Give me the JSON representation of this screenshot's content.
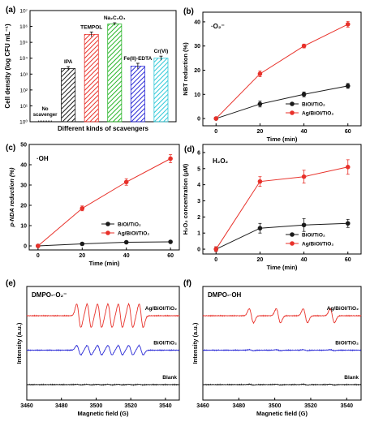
{
  "chart_data": [
    {
      "panel": "(a)",
      "type": "bar",
      "categories": [
        "No scavenger",
        "IPA",
        "TEMPOL",
        "Na2C2O4",
        "Fe(II)-EDTA",
        "Cr(VI)"
      ],
      "category_labels": [
        "No\nscavenger",
        "IPA",
        "TEMPOL",
        "Na₂C₂O₄",
        "Fe(II)-EDTA",
        "Cr(VI)"
      ],
      "values_log10": [
        0,
        3.35,
        5.5,
        6.15,
        3.5,
        4.0
      ],
      "errors_log10": [
        0,
        0.12,
        0.15,
        0.08,
        0.18,
        0.13
      ],
      "colors": [
        "#1a1a1a",
        "#1a1a1a",
        "#e8312a",
        "#27b427",
        "#2b2bd6",
        "#2ec8d8"
      ],
      "ylabel": "Cell density (log CFU mL⁻¹)",
      "xlabel": "Different kinds of scavengers",
      "yticks": [
        "10⁰",
        "10¹",
        "10²",
        "10³",
        "10⁴",
        "10⁵",
        "10⁶",
        "10⁷"
      ],
      "ylim": [
        0,
        7
      ]
    },
    {
      "panel": "(b)",
      "type": "line",
      "annotation": "·O₂⁻",
      "x": [
        0,
        20,
        40,
        60
      ],
      "series": [
        {
          "name": "BiOI/TiO₂",
          "values": [
            0,
            6,
            10,
            13.5
          ],
          "errors": [
            0.5,
            1.2,
            1.0,
            1.0
          ],
          "color": "#1a1a1a"
        },
        {
          "name": "Ag/BiOI/TiO₂",
          "values": [
            0,
            18.5,
            30,
            39
          ],
          "errors": [
            0.5,
            1.2,
            0.8,
            1.2
          ],
          "color": "#e8312a"
        }
      ],
      "xlabel": "Time (min)",
      "ylabel": "NBT reduction (%)",
      "xticks": [
        "0",
        "20",
        "40",
        "60"
      ],
      "yticks": [
        "0",
        "10",
        "20",
        "30",
        "40"
      ],
      "xlim": [
        -6,
        66
      ],
      "ylim": [
        -3,
        44
      ]
    },
    {
      "panel": "(c)",
      "type": "line",
      "annotation": "·OH",
      "x": [
        0,
        20,
        40,
        60
      ],
      "series": [
        {
          "name": "BiOI/TiO₂",
          "values": [
            0,
            1,
            1.8,
            2
          ],
          "errors": [
            0.3,
            0.4,
            0.4,
            0.4
          ],
          "color": "#1a1a1a"
        },
        {
          "name": "Ag/BiOI/TiO₂",
          "values": [
            0,
            18.5,
            31.5,
            43
          ],
          "errors": [
            0.4,
            1.2,
            1.6,
            2.0
          ],
          "color": "#e8312a"
        }
      ],
      "xlabel": "Time (min)",
      "ylabel": "p-NDA reduction (%)",
      "xticks": [
        "0",
        "20",
        "40",
        "60"
      ],
      "yticks": [
        "0",
        "10",
        "20",
        "30",
        "40",
        "50"
      ],
      "xlim": [
        -4,
        64
      ],
      "ylim": [
        -2,
        50
      ]
    },
    {
      "panel": "(d)",
      "type": "line",
      "annotation": "H₂O₂",
      "x": [
        0,
        20,
        40,
        60
      ],
      "series": [
        {
          "name": "BiOI/TiO₂",
          "values": [
            0,
            1.3,
            1.5,
            1.6
          ],
          "errors": [
            0.15,
            0.3,
            0.4,
            0.25
          ],
          "color": "#1a1a1a"
        },
        {
          "name": "Ag/BiOI/TiO₂",
          "values": [
            0,
            4.2,
            4.5,
            5.1
          ],
          "errors": [
            0.15,
            0.3,
            0.4,
            0.45
          ],
          "color": "#e8312a"
        }
      ],
      "xlabel": "Time (min)",
      "ylabel": "H₂O₂ concentration (μM)",
      "xticks": [
        "0",
        "20",
        "40",
        "60"
      ],
      "yticks": [
        "0",
        "1",
        "2",
        "3",
        "4",
        "5",
        "6"
      ],
      "xlim": [
        -6,
        66
      ],
      "ylim": [
        -0.3,
        6.5
      ]
    },
    {
      "panel": "(e)",
      "type": "line",
      "annotation": "DMPO-·O₂⁻",
      "series": [
        {
          "name": "Ag/BiOI/TiO₂",
          "color": "#e8312a",
          "offset": 2.0,
          "amplitude": 1.0
        },
        {
          "name": "BiOI/TiO₂",
          "color": "#2b2bd6",
          "offset": 1.0,
          "amplitude": 0.4
        },
        {
          "name": "Blank",
          "color": "#1a1a1a",
          "offset": 0.0,
          "amplitude": 0.02
        }
      ],
      "line_positions_G": [
        3490,
        3496,
        3502,
        3508,
        3514,
        3520,
        3526
      ],
      "xlabel": "Magnetic field (G)",
      "ylabel": "Intensity (a.u.)",
      "xticks": [
        "3460",
        "3480",
        "3500",
        "3520",
        "3540"
      ],
      "xlim": [
        3460,
        3548
      ]
    },
    {
      "panel": "(f)",
      "type": "line",
      "annotation": "DMPO-·OH",
      "series": [
        {
          "name": "Ag/BiOI/TiO₂",
          "color": "#e8312a",
          "offset": 2.0,
          "amplitude": 0.6
        },
        {
          "name": "BiOI/TiO₂",
          "color": "#2b2bd6",
          "offset": 1.0,
          "amplitude": 0.04
        },
        {
          "name": "Blank",
          "color": "#1a1a1a",
          "offset": 0.0,
          "amplitude": 0.03
        }
      ],
      "line_positions_G": [
        3487,
        3502,
        3517,
        3532
      ],
      "xlabel": "Magnetic field (G)",
      "ylabel": "Intensity (a.u.)",
      "xticks": [
        "3460",
        "3480",
        "3500",
        "3520",
        "3540"
      ],
      "xlim": [
        3460,
        3548
      ]
    }
  ]
}
